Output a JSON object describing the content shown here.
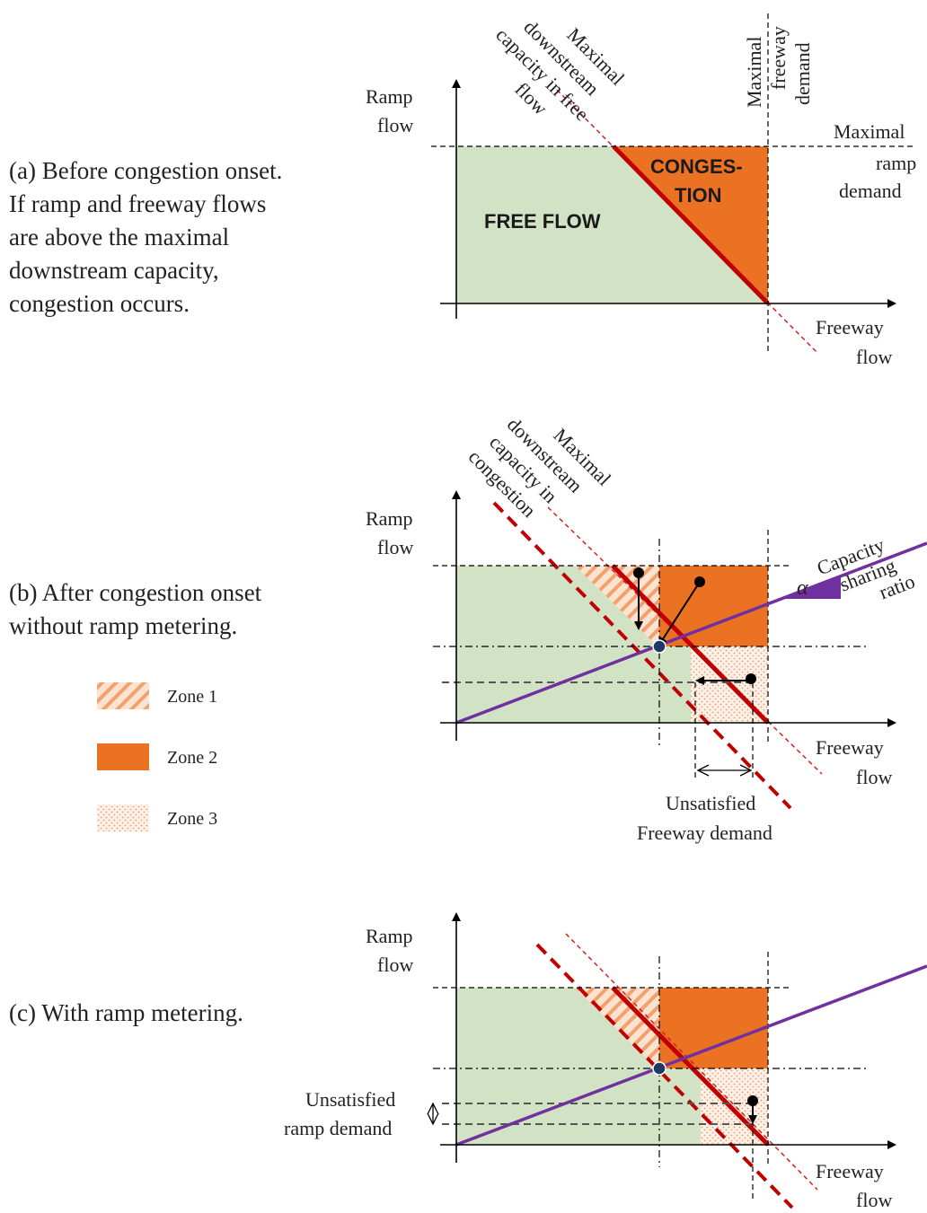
{
  "colors": {
    "free_flow_green": "#d2e3c5",
    "congestion_orange": "#ec7223",
    "capacity_red": "#c00000",
    "sharing_purple": "#7030a0",
    "zone3_dots": "#f0a070",
    "point_blue": "#1f3864"
  },
  "panel_a": {
    "caption": [
      "(a) Before congestion onset.",
      "If ramp and freeway flows",
      "are above the maximal",
      "downstream capacity,",
      "congestion occurs."
    ],
    "y_axis_label": [
      "Ramp",
      "flow"
    ],
    "x_axis_label": [
      "Freeway",
      "flow"
    ],
    "capacity_label": [
      "Maximal",
      "downstream",
      "capacity in free",
      "flow"
    ],
    "freeway_demand_label": [
      "Maximal",
      "freeway",
      "demand"
    ],
    "ramp_demand_label": [
      "Maximal",
      "ramp",
      "demand"
    ],
    "free_flow_label": "FREE FLOW",
    "congestion_label": [
      "CONGES-",
      "TION"
    ]
  },
  "panel_b": {
    "caption": [
      "(b) After congestion onset",
      "without ramp metering."
    ],
    "y_axis_label": [
      "Ramp",
      "flow"
    ],
    "x_axis_label": [
      "Freeway",
      "flow"
    ],
    "capacity_label": [
      "Maximal",
      "downstream",
      "capacity in",
      "congestion"
    ],
    "alpha_symbol": "α",
    "sharing_label": [
      "Capacity",
      "sharing",
      "ratio"
    ],
    "unsatisfied_label": [
      "Unsatisfied",
      "Freeway demand"
    ]
  },
  "legend": [
    {
      "name": "Zone 1"
    },
    {
      "name": "Zone 2"
    },
    {
      "name": "Zone 3"
    }
  ],
  "panel_c": {
    "caption": [
      "(c) With ramp metering."
    ],
    "y_axis_label": [
      "Ramp",
      "flow"
    ],
    "x_axis_label": [
      "Freeway",
      "flow"
    ],
    "unsatisfied_label": [
      "Unsatisfied",
      "ramp demand"
    ]
  }
}
